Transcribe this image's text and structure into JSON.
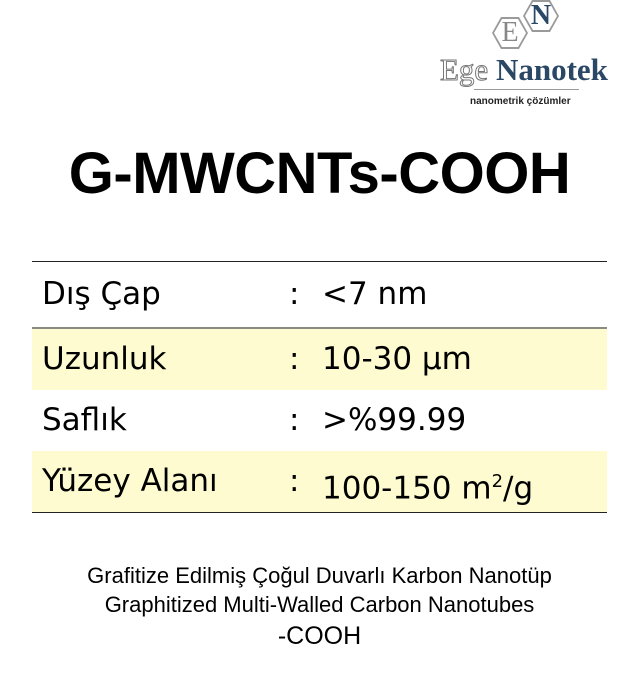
{
  "logo": {
    "hex_letters": [
      "E",
      "N"
    ],
    "brand_first": "Ege",
    "brand_second": "Nanotek",
    "tagline": "nanometrik çözümler"
  },
  "title": "G-MWCNTs-COOH",
  "specs": [
    {
      "label": "Dış Çap",
      "sep": ":",
      "value": "<7 nm"
    },
    {
      "label": "Uzunluk",
      "sep": ":",
      "value": "10-30 µm"
    },
    {
      "label": "Saflık",
      "sep": ":",
      "value": ">%99.99"
    },
    {
      "label": "Yüzey Alanı",
      "sep": ":",
      "value": "100-150 m",
      "value_sup": "2",
      "value_tail": "/g"
    }
  ],
  "colors": {
    "highlight_row": "#fdfbcf",
    "brand_blue": "#2a4766"
  },
  "footer": {
    "line1": "Grafitize Edilmiş Çoğul Duvarlı Karbon Nanotüp",
    "line2": "Graphitized Multi-Walled Carbon Nanotubes",
    "line3": "-COOH"
  }
}
